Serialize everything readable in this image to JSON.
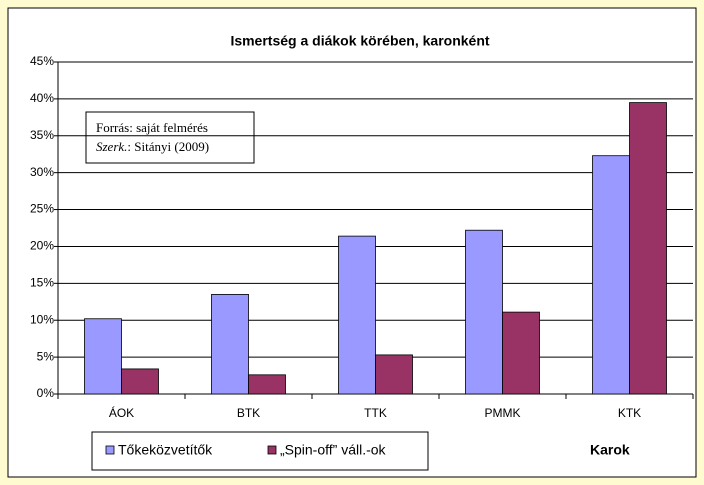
{
  "chart_data": {
    "type": "bar",
    "title": "Ismertség a diákok körében, karonként",
    "x_label": "Karok",
    "annotation": {
      "line1": "Forrás: saját felmérés",
      "line2_italic": "Szerk.",
      "line2_rest": ": Sitányi (2009)"
    },
    "categories": [
      "ÁOK",
      "BTK",
      "TTK",
      "PMMK",
      "KTK"
    ],
    "series": [
      {
        "name": "Tőkeközvetítők",
        "color": "#9999ff",
        "values": [
          10.2,
          13.5,
          21.4,
          22.2,
          32.3
        ]
      },
      {
        "name": "„Spin-off” váll.-ok",
        "color": "#993366",
        "values": [
          3.4,
          2.6,
          5.3,
          11.1,
          39.5
        ]
      }
    ],
    "ylim": [
      0,
      45
    ],
    "yticks": [
      {
        "value": 0,
        "label": "0%"
      },
      {
        "value": 5,
        "label": "5%"
      },
      {
        "value": 10,
        "label": "10%"
      },
      {
        "value": 15,
        "label": "15%"
      },
      {
        "value": 20,
        "label": "20%"
      },
      {
        "value": 25,
        "label": "25%"
      },
      {
        "value": 30,
        "label": "30%"
      },
      {
        "value": 35,
        "label": "35%"
      },
      {
        "value": 40,
        "label": "40%"
      },
      {
        "value": 45,
        "label": "45%"
      }
    ],
    "grid": true
  }
}
